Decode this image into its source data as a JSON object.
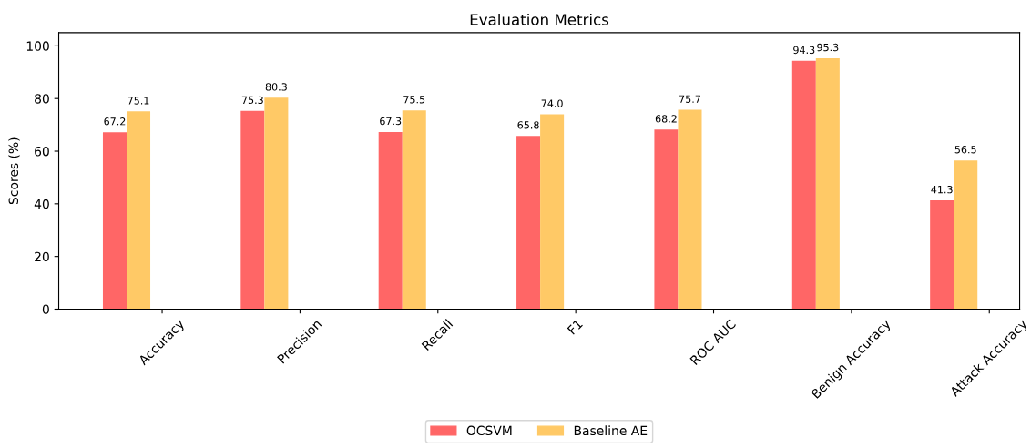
{
  "chart_data": {
    "type": "bar",
    "title": "Evaluation Metrics",
    "ylabel": "Scores (%)",
    "categories": [
      "Accuracy",
      "Precision",
      "Recall",
      "F1",
      "ROC AUC",
      "Benign Accuracy",
      "Attack Accuracy"
    ],
    "series": [
      {
        "name": "OCSVM",
        "color": "#ff6666",
        "values": [
          67.2,
          75.3,
          67.3,
          65.8,
          68.2,
          94.3,
          41.3
        ],
        "value_labels": [
          "67.2",
          "75.3",
          "67.3",
          "65.8",
          "68.2",
          "94.3",
          "41.3"
        ]
      },
      {
        "name": "Baseline AE",
        "color": "#ffc966",
        "values": [
          75.1,
          80.3,
          75.5,
          74.0,
          75.7,
          95.3,
          56.5
        ],
        "value_labels": [
          "75.1",
          "80.3",
          "75.5",
          "74.0",
          "75.7",
          "95.3",
          "56.5"
        ]
      }
    ],
    "ylim": [
      0,
      105
    ],
    "yticks": [
      0,
      20,
      40,
      60,
      80,
      100
    ],
    "legend": "bottom",
    "grid": false
  }
}
